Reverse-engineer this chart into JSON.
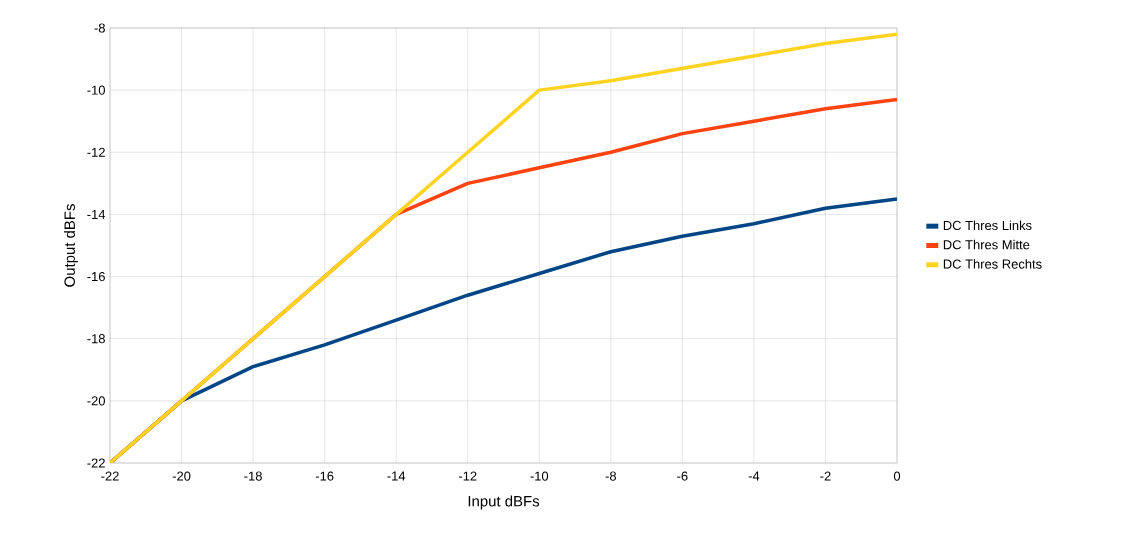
{
  "chart_data": {
    "type": "line",
    "xlabel": "Input dBFs",
    "ylabel": "Output dBFs",
    "x": [
      -22,
      -20,
      -18,
      -16,
      -14,
      -12,
      -10,
      -8,
      -6,
      -4,
      -2,
      0
    ],
    "series": [
      {
        "name": "DC Thres Links",
        "color": "#004586",
        "values": [
          -22,
          -20,
          -18.9,
          -18.2,
          -17.4,
          -16.6,
          -15.9,
          -15.2,
          -14.7,
          -14.3,
          -13.8,
          -13.5
        ]
      },
      {
        "name": "DC Thres Mitte",
        "color": "#ff420e",
        "values": [
          -22,
          -20,
          -18,
          -16,
          -14,
          -13,
          -12.5,
          -12,
          -11.4,
          -11,
          -10.6,
          -10.3
        ]
      },
      {
        "name": "DC Thres Rechts",
        "color": "#ffd320",
        "values": [
          -22,
          -20,
          -18,
          -16,
          -14,
          -12,
          -10,
          -9.7,
          -9.3,
          -8.9,
          -8.5,
          -8.2
        ]
      }
    ],
    "xlim": [
      -22,
      0
    ],
    "xticks": [
      -22,
      -20,
      -18,
      -16,
      -14,
      -12,
      -10,
      -8,
      -6,
      -4,
      -2,
      0
    ],
    "ylim": [
      -22,
      -8
    ],
    "yticks": [
      -22,
      -20,
      -18,
      -16,
      -14,
      -12,
      -10,
      -8
    ],
    "grid": true,
    "legend": "right",
    "marker": "none",
    "line_style": "solid"
  }
}
